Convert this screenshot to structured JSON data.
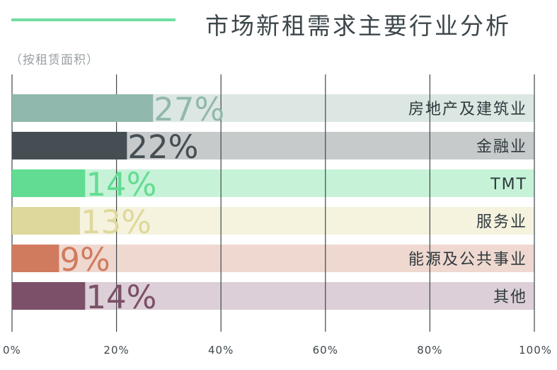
{
  "title": "市场新租需求主要行业分析",
  "subtitle": "（按租赁面积）",
  "colors": {
    "accent_line": "#6fdfa0",
    "title": "#3d474b",
    "subtitle": "#9aa1a4",
    "grid": "#3d474b",
    "tick_label": "#3d474b"
  },
  "chart_data": {
    "type": "bar",
    "orientation": "horizontal",
    "title": "市场新租需求主要行业分析",
    "subtitle": "（按租赁面积）",
    "categories": [
      "房地产及建筑业",
      "金融业",
      "TMT",
      "服务业",
      "能源及公共事业",
      "其他"
    ],
    "values": [
      27,
      22,
      14,
      13,
      9,
      14
    ],
    "value_labels": [
      "27%",
      "22%",
      "14%",
      "13%",
      "9%",
      "14%"
    ],
    "bar_colors": [
      "#91b8ac",
      "#444e53",
      "#63dc93",
      "#dfd89b",
      "#d17b5e",
      "#7b5068"
    ],
    "track_colors": [
      "#dce7e3",
      "#c7cacb",
      "#c6f3d7",
      "#f5f3de",
      "#efd8d0",
      "#dccfd7"
    ],
    "xlim": [
      0,
      100
    ],
    "xticks": [
      0,
      20,
      40,
      60,
      80,
      100
    ],
    "xtick_labels": [
      "0%",
      "20%",
      "40%",
      "60%",
      "80%",
      "100%"
    ],
    "grid": true,
    "xlabel": "",
    "ylabel": ""
  }
}
